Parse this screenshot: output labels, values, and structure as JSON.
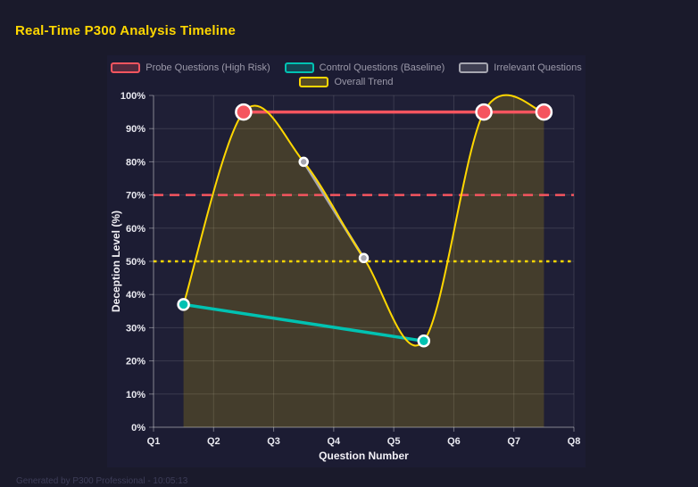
{
  "header": {
    "title": "Real-Time P300 Analysis Timeline"
  },
  "footer": {
    "note": "Generated by P300 Professional - 10:05:13"
  },
  "colors": {
    "page_bg": "#1a1a2b",
    "panel_bg": "#1c1c33",
    "grid": "rgba(255,255,255,0.12)",
    "axis": "rgba(255,255,255,0.38)",
    "tick_label": "#e9e9f0",
    "axis_title": "#f2f0f6",
    "legend_text": "#9b99a9",
    "title_accent": "#ffd700"
  },
  "chart_data": {
    "type": "line",
    "title": "Real-Time P300 Analysis Timeline",
    "xlabel": "Question Number",
    "ylabel": "Deception Level (%)",
    "x_ticks": [
      "Q1",
      "Q2",
      "Q3",
      "Q4",
      "Q5",
      "Q6",
      "Q7",
      "Q8"
    ],
    "xlim": [
      1,
      8
    ],
    "ylim": [
      0,
      100
    ],
    "y_tick_step": 10,
    "y_tick_suffix": "%",
    "grid": true,
    "legend_position": "top",
    "legend_rows": [
      [
        0,
        1,
        2
      ],
      [
        3
      ]
    ],
    "series": [
      {
        "name": "Probe Questions (High Risk)",
        "key": "probe",
        "x": [
          2.5,
          6.5,
          7.5
        ],
        "values": [
          95,
          95,
          95
        ],
        "color": "#f5555f",
        "marker_radius": 8.5,
        "line_width": 3.5,
        "smooth": false
      },
      {
        "name": "Control Questions (Baseline)",
        "key": "control",
        "x": [
          1.5,
          5.5
        ],
        "values": [
          37,
          26
        ],
        "color": "#00c2b2",
        "marker_radius": 6,
        "line_width": 3.5,
        "smooth": false
      },
      {
        "name": "Irrelevant Questions",
        "key": "irrelevant",
        "x": [
          3.5,
          4.5
        ],
        "values": [
          80,
          51
        ],
        "color": "#a6a6b0",
        "marker_radius": 4.5,
        "line_width": 3,
        "smooth": false
      },
      {
        "name": "Overall Trend",
        "key": "trend",
        "x": [
          1.5,
          2.5,
          3.5,
          4.5,
          5.5,
          6.5,
          7.5
        ],
        "values": [
          37,
          95,
          80,
          51,
          26,
          95,
          95
        ],
        "color": "#ffd700",
        "marker_radius": 0,
        "line_width": 2,
        "smooth": true,
        "area_fill": "rgba(255,215,0,0.17)"
      }
    ],
    "thresholds": [
      {
        "value": 70,
        "color": "#f5555f",
        "style": "dashed"
      },
      {
        "value": 50,
        "color": "#ffd700",
        "style": "dotted"
      }
    ]
  }
}
